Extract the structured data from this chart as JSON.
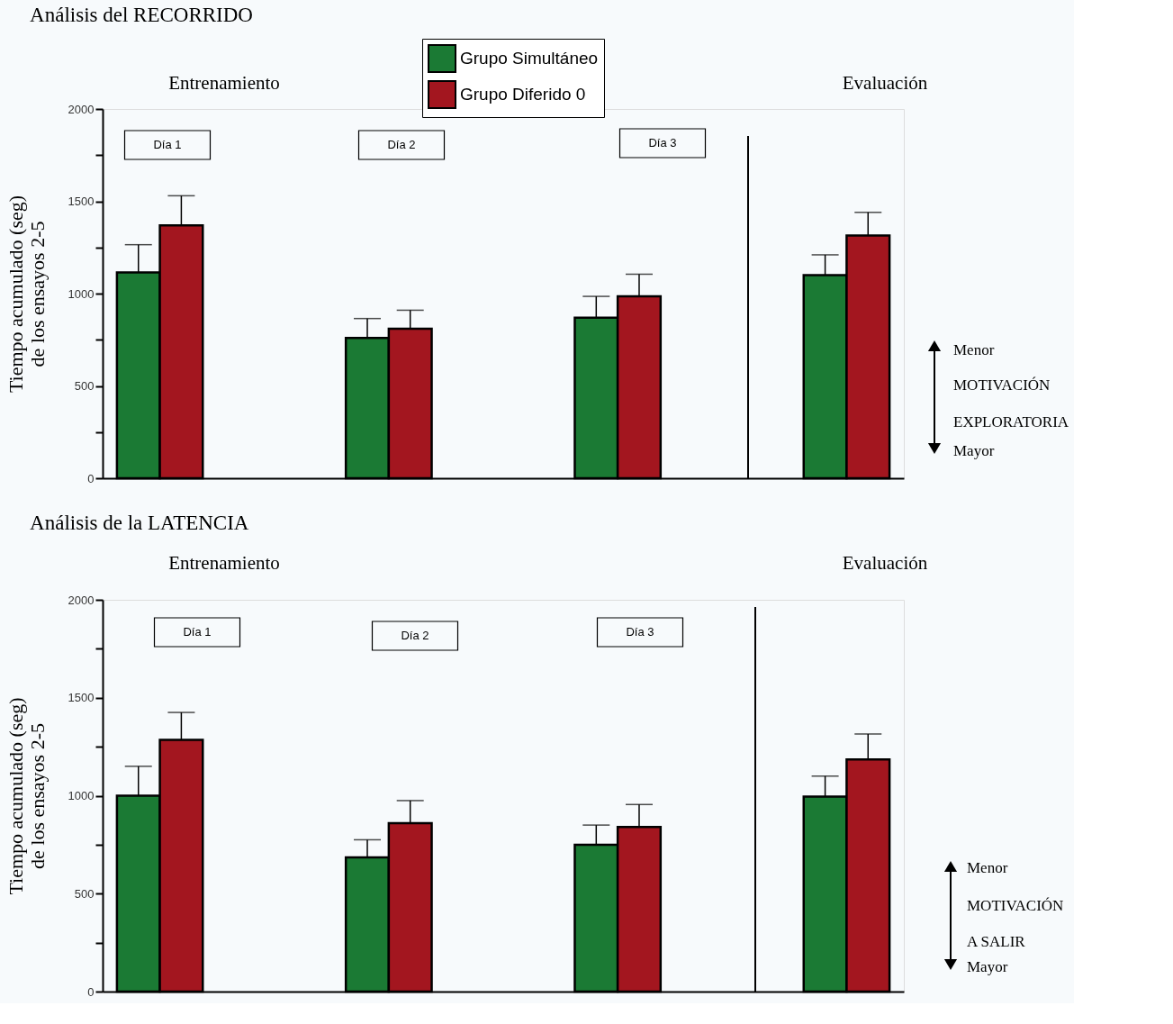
{
  "chart_data": [
    {
      "type": "bar",
      "title": "Análisis del RECORRIDO",
      "ylabel": "Tiempo acumulado (seg)\nde los ensayos 2-5",
      "categories": [
        null,
        null,
        null,
        null
      ],
      "series": [
        {
          "name": "Grupo Simultáneo",
          "color": "#1b7a34",
          "values": [
            1115,
            760,
            870,
            1100
          ],
          "errors": [
            [
              1115,
              1265
            ],
            [
              760,
              865
            ],
            [
              870,
              985
            ],
            [
              1100,
              1210
            ]
          ]
        },
        {
          "name": "Grupo Diferido 0",
          "color": "#a3161f",
          "values": [
            1370,
            810,
            985,
            1315
          ],
          "errors": [
            [
              1370,
              1530
            ],
            [
              810,
              910
            ],
            [
              985,
              1105
            ],
            [
              1315,
              1440
            ]
          ]
        }
      ],
      "ylim": [
        0,
        2000
      ],
      "yticks": [
        0,
        {
          "value": 250,
          "label": null
        },
        500,
        {
          "value": 750,
          "label": null
        },
        1000,
        {
          "value": 1250,
          "label": null
        },
        1500,
        {
          "value": 1750,
          "label": null
        },
        2000
      ],
      "annotations": [
        "Entrenamiento",
        "Evaluación",
        "Día 1",
        "Día 2",
        "Día 3",
        "Menor",
        "MOTIVACIÓN",
        "EXPLORATORIA",
        "Mayor"
      ],
      "legend": "top",
      "grid": false,
      "tick_labels": "y"
    },
    {
      "type": "bar",
      "title": "Análisis de la LATENCIA",
      "ylabel": "Tiempo acumulado (seg)\nde los ensayos 2-5",
      "categories": [
        null,
        null,
        null,
        null
      ],
      "series": [
        {
          "name": "Grupo Simultáneo",
          "color": "#1b7a34",
          "values": [
            1000,
            685,
            750,
            995
          ],
          "errors": [
            [
              1000,
              1150
            ],
            [
              685,
              775
            ],
            [
              750,
              850
            ],
            [
              995,
              1100
            ]
          ]
        },
        {
          "name": "Grupo Diferido 0",
          "color": "#a3161f",
          "values": [
            1285,
            860,
            840,
            1185
          ],
          "errors": [
            [
              1285,
              1425
            ],
            [
              860,
              975
            ],
            [
              840,
              955
            ],
            [
              1185,
              1315
            ]
          ]
        }
      ],
      "ylim": [
        0,
        2000
      ],
      "yticks": [
        0,
        {
          "value": 250,
          "label": null
        },
        500,
        {
          "value": 750,
          "label": null
        },
        1000,
        {
          "value": 1250,
          "label": null
        },
        1500,
        {
          "value": 1750,
          "label": null
        },
        2000
      ],
      "annotations": [
        "Entrenamiento",
        "Evaluación",
        "Día 1",
        "Día 2",
        "Día 3",
        "Menor",
        "MOTIVACIÓN",
        "A SALIR",
        "Mayor"
      ],
      "legend": false,
      "grid": false,
      "tick_labels": "y"
    }
  ]
}
